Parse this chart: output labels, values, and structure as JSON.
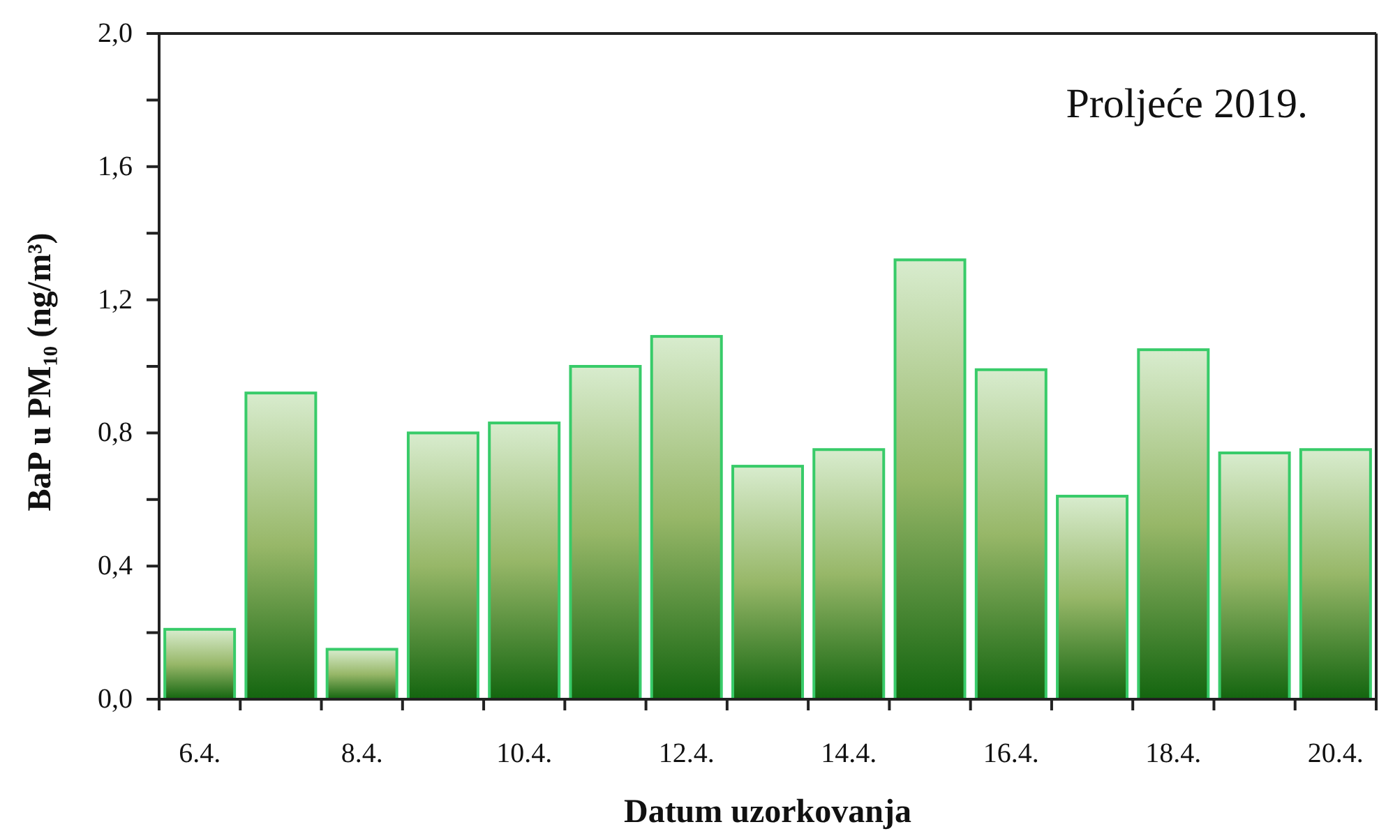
{
  "chart_data": {
    "type": "bar",
    "title": "Proljeće 2019.",
    "xlabel": "Datum uzorkovanja",
    "ylabel": "BaP u PM₁₀ (ng/m³)",
    "categories": [
      "6.4.",
      null,
      "8.4.",
      null,
      "10.4.",
      null,
      "12.4.",
      null,
      "14.4.",
      null,
      "16.4.",
      null,
      "18.4.",
      null,
      "20.4."
    ],
    "values": [
      0.21,
      0.92,
      0.15,
      0.8,
      0.83,
      1.0,
      1.09,
      0.7,
      0.75,
      1.32,
      0.99,
      0.61,
      1.05,
      0.74,
      0.75
    ],
    "color": "#38cb69",
    "ylim": [
      0,
      2
    ],
    "yticks": [
      {
        "value": 0,
        "label": "0,0"
      },
      {
        "value": 0.2,
        "label": null
      },
      {
        "value": 0.4,
        "label": "0,4"
      },
      {
        "value": 0.6,
        "label": null
      },
      {
        "value": 0.8,
        "label": "0,8"
      },
      {
        "value": 1.0,
        "label": null
      },
      {
        "value": 1.2,
        "label": "1,2"
      },
      {
        "value": 1.4,
        "label": null
      },
      {
        "value": 1.6,
        "label": "1,6"
      },
      {
        "value": 1.8,
        "label": null
      },
      {
        "value": 2.0,
        "label": "2,0"
      }
    ]
  }
}
